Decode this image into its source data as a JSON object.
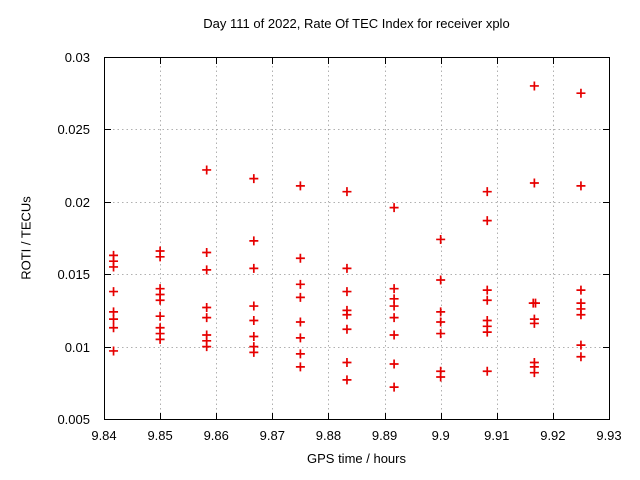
{
  "chart_data": {
    "type": "scatter",
    "title": "Day 111 of 2022, Rate Of TEC Index for receiver xplo",
    "xlabel": "GPS time / hours",
    "ylabel": "ROTI / TECUs",
    "xlim": [
      9.84,
      9.93
    ],
    "ylim": [
      0.005,
      0.03
    ],
    "xticks": [
      9.84,
      9.85,
      9.86,
      9.87,
      9.88,
      9.89,
      9.9,
      9.91,
      9.92,
      9.93
    ],
    "xtick_labels": [
      "9.84",
      "9.85",
      "9.86",
      "9.87",
      "9.88",
      "9.89",
      "9.9",
      "9.91",
      "9.92",
      "9.93"
    ],
    "yticks": [
      0.005,
      0.01,
      0.015,
      0.02,
      0.025,
      0.03
    ],
    "ytick_labels": [
      "0.005",
      "0.01",
      "0.015",
      "0.02",
      "0.025",
      "0.03"
    ],
    "grid": true,
    "legend": "none",
    "marker": "plus",
    "marker_color": "#e60000",
    "grid_color": "#b0b0b0",
    "axis_color": "#000000",
    "series": [
      {
        "name": "ROTI",
        "points": [
          [
            9.8417,
            0.0163
          ],
          [
            9.8417,
            0.0159
          ],
          [
            9.8417,
            0.0155
          ],
          [
            9.8417,
            0.0138
          ],
          [
            9.8417,
            0.0124
          ],
          [
            9.8417,
            0.0119
          ],
          [
            9.8417,
            0.0113
          ],
          [
            9.8417,
            0.0097
          ],
          [
            9.85,
            0.0166
          ],
          [
            9.85,
            0.0162
          ],
          [
            9.85,
            0.014
          ],
          [
            9.85,
            0.0136
          ],
          [
            9.85,
            0.0132
          ],
          [
            9.85,
            0.0121
          ],
          [
            9.85,
            0.0113
          ],
          [
            9.85,
            0.0109
          ],
          [
            9.85,
            0.0105
          ],
          [
            9.8583,
            0.0222
          ],
          [
            9.8583,
            0.0165
          ],
          [
            9.8583,
            0.0153
          ],
          [
            9.8583,
            0.0127
          ],
          [
            9.8583,
            0.012
          ],
          [
            9.8583,
            0.0108
          ],
          [
            9.8583,
            0.0104
          ],
          [
            9.8583,
            0.01
          ],
          [
            9.8667,
            0.0216
          ],
          [
            9.8667,
            0.0173
          ],
          [
            9.8667,
            0.0154
          ],
          [
            9.8667,
            0.0128
          ],
          [
            9.8667,
            0.0118
          ],
          [
            9.8667,
            0.0107
          ],
          [
            9.8667,
            0.01
          ],
          [
            9.8667,
            0.0096
          ],
          [
            9.875,
            0.0211
          ],
          [
            9.875,
            0.0161
          ],
          [
            9.875,
            0.0143
          ],
          [
            9.875,
            0.0134
          ],
          [
            9.875,
            0.0117
          ],
          [
            9.875,
            0.0106
          ],
          [
            9.875,
            0.0095
          ],
          [
            9.875,
            0.0086
          ],
          [
            9.8833,
            0.0207
          ],
          [
            9.8833,
            0.0154
          ],
          [
            9.8833,
            0.0138
          ],
          [
            9.8833,
            0.0125
          ],
          [
            9.8833,
            0.0122
          ],
          [
            9.8833,
            0.0112
          ],
          [
            9.8833,
            0.0089
          ],
          [
            9.8833,
            0.0077
          ],
          [
            9.8917,
            0.0196
          ],
          [
            9.8917,
            0.014
          ],
          [
            9.8917,
            0.0133
          ],
          [
            9.8917,
            0.0128
          ],
          [
            9.8917,
            0.012
          ],
          [
            9.8917,
            0.0108
          ],
          [
            9.8917,
            0.0088
          ],
          [
            9.8917,
            0.0072
          ],
          [
            9.9,
            0.0174
          ],
          [
            9.9,
            0.0146
          ],
          [
            9.9,
            0.0124
          ],
          [
            9.9,
            0.0117
          ],
          [
            9.9,
            0.0109
          ],
          [
            9.9,
            0.0083
          ],
          [
            9.9,
            0.0079
          ],
          [
            9.9083,
            0.0207
          ],
          [
            9.9083,
            0.0187
          ],
          [
            9.9083,
            0.0139
          ],
          [
            9.9083,
            0.0132
          ],
          [
            9.9083,
            0.0118
          ],
          [
            9.9083,
            0.0114
          ],
          [
            9.9083,
            0.011
          ],
          [
            9.9083,
            0.0083
          ],
          [
            9.9167,
            0.028
          ],
          [
            9.9167,
            0.0213
          ],
          [
            9.9165,
            0.013
          ],
          [
            9.9169,
            0.013
          ],
          [
            9.9167,
            0.0119
          ],
          [
            9.9167,
            0.0116
          ],
          [
            9.9167,
            0.0089
          ],
          [
            9.9167,
            0.0086
          ],
          [
            9.9167,
            0.0082
          ],
          [
            9.925,
            0.0275
          ],
          [
            9.925,
            0.0211
          ],
          [
            9.925,
            0.0139
          ],
          [
            9.925,
            0.013
          ],
          [
            9.925,
            0.0126
          ],
          [
            9.925,
            0.0122
          ],
          [
            9.925,
            0.0101
          ],
          [
            9.925,
            0.0093
          ]
        ]
      }
    ]
  }
}
